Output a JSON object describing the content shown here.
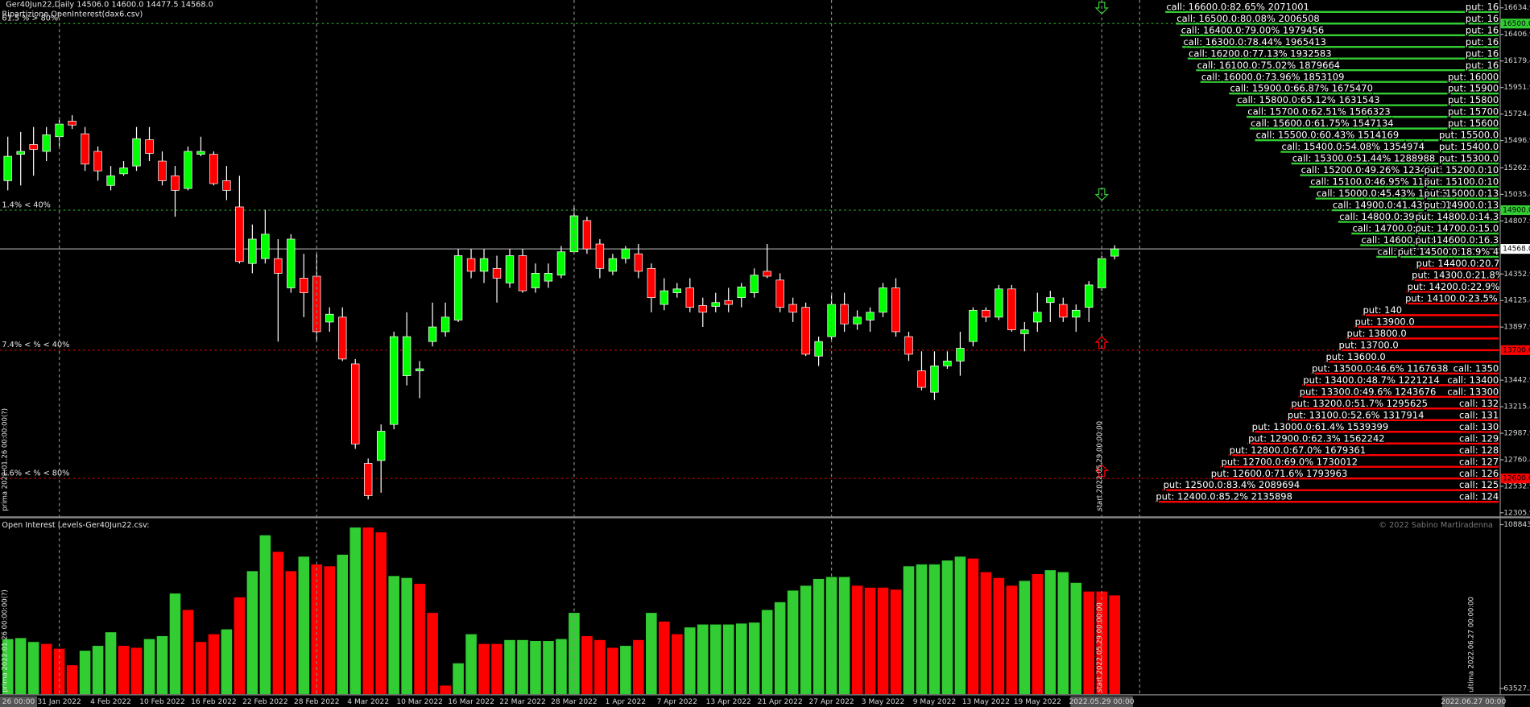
{
  "header": {
    "title": "Ger40Jun22,Daily  14506.0 14600.0 14477.5 14568.0",
    "subtitle": "Ripartizione OpenInterest(dax6.csv)"
  },
  "price_panel": {
    "ylim": [
      12271,
      16702
    ],
    "yticks": [
      16634.9,
      16406.9,
      16179.4,
      15951.9,
      15724.4,
      15496.9,
      15262.9,
      15035.4,
      14807.9,
      14352.9,
      14125.4,
      13897.9,
      13442.9,
      13215.4,
      12987.9,
      12760.4,
      12532.9,
      12305.9
    ],
    "categories": [
      null,
      null,
      null,
      null,
      "31 Jan 2022",
      null,
      null,
      null,
      "4 Feb 2022",
      null,
      null,
      null,
      "10 Feb 2022",
      null,
      null,
      null,
      "16 Feb 2022",
      null,
      null,
      null,
      "22 Feb 2022",
      null,
      null,
      null,
      "28 Feb 2022",
      null,
      null,
      null,
      "4 Mar 2022",
      null,
      null,
      null,
      "10 Mar 2022",
      null,
      null,
      null,
      "16 Mar 2022",
      null,
      null,
      null,
      "22 Mar 2022",
      null,
      null,
      null,
      "28 Mar 2022",
      null,
      null,
      null,
      "1 Apr 2022",
      null,
      null,
      null,
      "7 Apr 2022",
      null,
      null,
      null,
      "13 Apr 2022",
      null,
      null,
      null,
      "21 Apr 2022",
      null,
      null,
      null,
      "27 Apr 2022",
      null,
      null,
      null,
      "3 May 2022",
      null,
      null,
      null,
      "9 May 2022",
      null,
      null,
      null,
      "13 May 2022",
      null,
      null,
      null,
      "19 May 2022",
      null,
      null,
      null,
      null,
      null,
      null
    ],
    "open": [
      15153,
      15379,
      15463,
      15404,
      15530,
      15663,
      15555,
      15404,
      15112,
      15212,
      15279,
      15504,
      15321,
      15195,
      15086,
      15379,
      15379,
      15153,
      14928,
      14443,
      14485,
      14485,
      14234,
      14317,
      14334,
      13941,
      13983,
      13582,
      12729,
      12754,
      13063,
      13481,
      13523,
      13774,
      13858,
      13958,
      14485,
      14376,
      14401,
      14276,
      14510,
      14234,
      14292,
      14343,
      14543,
      14811,
      14610,
      14376,
      14485,
      14526,
      14401,
      14092,
      14192,
      14234,
      14083,
      14075,
      14125,
      14150,
      14192,
      14376,
      14301,
      14092,
      14067,
      13649,
      13816,
      14092,
      13925,
      13958,
      14025,
      14234,
      13816,
      13523,
      13339,
      13565,
      13607,
      13774,
      14042,
      13983,
      14225,
      13841,
      13941,
      14108,
      14092,
      13983,
      14067,
      14234,
      14506.0
    ],
    "high": [
      15530,
      15571,
      15613,
      15613,
      15697,
      15714,
      15613,
      15446,
      15279,
      15321,
      15613,
      15613,
      15404,
      15279,
      15446,
      15530,
      15404,
      15279,
      15195,
      14777,
      14903,
      14652,
      14694,
      14526,
      14526,
      14067,
      14067,
      13624,
      12771,
      13063,
      13858,
      14025,
      13607,
      14108,
      14108,
      14568,
      14568,
      14568,
      14510,
      14568,
      14568,
      14443,
      14443,
      14593,
      14944,
      14844,
      14652,
      14526,
      14593,
      14610,
      14443,
      14317,
      14276,
      14317,
      14150,
      14192,
      14234,
      14276,
      14401,
      14610,
      14359,
      14150,
      14108,
      13816,
      14192,
      14192,
      14042,
      14067,
      14276,
      14317,
      13858,
      13690,
      13690,
      13690,
      13858,
      14067,
      14067,
      14259,
      14259,
      13941,
      14192,
      14209,
      14150,
      14092,
      14292,
      14510,
      14600.0
    ],
    "low": [
      15070,
      15112,
      15195,
      15321,
      15446,
      15596,
      15237,
      15153,
      15070,
      15195,
      15237,
      15321,
      15112,
      14844,
      15070,
      15362,
      15112,
      14986,
      14443,
      14359,
      14443,
      13774,
      14192,
      13983,
      13774,
      13858,
      13607,
      12854,
      12420,
      12478,
      13022,
      13398,
      13289,
      13732,
      13816,
      13941,
      14317,
      14276,
      14108,
      14234,
      14192,
      14192,
      14234,
      14317,
      14526,
      14526,
      14317,
      14343,
      14443,
      14317,
      14025,
      14042,
      14150,
      14025,
      13899,
      14025,
      14025,
      14067,
      14150,
      14317,
      14025,
      13941,
      13649,
      13565,
      13791,
      13858,
      13874,
      13858,
      13983,
      13816,
      13607,
      13356,
      13272,
      13540,
      13481,
      13732,
      13941,
      13958,
      13858,
      13690,
      13858,
      13941,
      13941,
      13858,
      13941,
      14209,
      14477.5
    ],
    "close": [
      15362,
      15404,
      15421,
      15546,
      15638,
      15630,
      15295,
      15237,
      15195,
      15262,
      15513,
      15387,
      15153,
      15070,
      15404,
      15404,
      15128,
      15070,
      14460,
      14652,
      14694,
      14359,
      14652,
      14192,
      13858,
      14008,
      13624,
      12896,
      12453,
      13005,
      13816,
      13816,
      13540,
      13899,
      13983,
      14510,
      14376,
      14485,
      14317,
      14510,
      14209,
      14359,
      14359,
      14543,
      14852,
      14568,
      14401,
      14485,
      14568,
      14376,
      14150,
      14209,
      14225,
      14067,
      14025,
      14108,
      14092,
      14242,
      14343,
      14334,
      14067,
      14025,
      13665,
      13774,
      14092,
      13925,
      13983,
      14025,
      14234,
      13858,
      13665,
      13381,
      13565,
      13607,
      13716,
      14042,
      13983,
      14225,
      13874,
      13874,
      14025,
      14150,
      13983,
      14042,
      14259,
      14485,
      14568.0
    ],
    "up_color": "#00ff00",
    "down_color": "#ff0000",
    "current": {
      "value": 14568,
      "label": "14568.0"
    },
    "levels": [
      {
        "value": 16500,
        "label": "16500.0",
        "color": "#32cd32",
        "note": "61.5 % > 80%"
      },
      {
        "value": 14900,
        "label": "14900.0",
        "color": "#32cd32",
        "note": "1.4% < 40%"
      },
      {
        "value": 13700,
        "label": "13700.0",
        "color": "#ff0000",
        "note": "7.4% < % < 40%"
      },
      {
        "value": 12600,
        "label": "12600.0",
        "color": "#ff0000",
        "note": "1.6% < % < 80%"
      }
    ],
    "first_marker": "prima 2022.01.26 00:00:00(?)",
    "start_marker": "start 2022.05.29 00:00:00"
  },
  "ladder": {
    "rows": [
      {
        "strike": 16600,
        "oi": 2071001,
        "color": "#32cd32",
        "text": "call: 16600.0:82.65% 2071001",
        "right": "put: 16"
      },
      {
        "strike": 16500,
        "oi": 2006508,
        "color": "#32cd32",
        "text": "call: 16500.0:80.08% 2006508",
        "right": "put: 16"
      },
      {
        "strike": 16400,
        "oi": 1979456,
        "color": "#32cd32",
        "text": "call: 16400.0:79.00% 1979456",
        "right": "put: 16"
      },
      {
        "strike": 16300,
        "oi": 1965413,
        "color": "#32cd32",
        "text": "call: 16300.0:78.44% 1965413",
        "right": "put: 16"
      },
      {
        "strike": 16200,
        "oi": 1932583,
        "color": "#32cd32",
        "text": "call: 16200.0:77.13% 1932583",
        "right": "put: 16"
      },
      {
        "strike": 16100,
        "oi": 1879664,
        "color": "#32cd32",
        "text": "call: 16100.0:75.02% 1879664",
        "right": "put: 16"
      },
      {
        "strike": 16000,
        "oi": 1853109,
        "color": "#32cd32",
        "text": "call: 16000.0:73.96% 1853109",
        "right": "put: 16000"
      },
      {
        "strike": 15900,
        "oi": 1675470,
        "color": "#32cd32",
        "text": "call: 15900.0:66.87% 1675470",
        "right": "put: 15900"
      },
      {
        "strike": 15800,
        "oi": 1631543,
        "color": "#32cd32",
        "text": "call: 15800.0:65.12% 1631543",
        "right": "put: 15800"
      },
      {
        "strike": 15700,
        "oi": 1566323,
        "color": "#32cd32",
        "text": "call: 15700.0:62.51% 1566323",
        "right": "put: 15700"
      },
      {
        "strike": 15600,
        "oi": 1547134,
        "color": "#32cd32",
        "text": "call: 15600.0:61.75% 1547134",
        "right": "put: 15600"
      },
      {
        "strike": 15500,
        "oi": 1514169,
        "color": "#32cd32",
        "text": "call: 15500.0:60.43% 1514169",
        "right": "put: 15500.0"
      },
      {
        "strike": 15400,
        "oi": 1354974,
        "color": "#32cd32",
        "text": "call: 15400.0:54.08% 1354974",
        "right": "put: 15400.0"
      },
      {
        "strike": 15300,
        "oi": 1288988,
        "color": "#32cd32",
        "text": "call: 15300.0:51.44% 1288988",
        "right": "put: 15300.0"
      },
      {
        "strike": 15200,
        "oi": 1234271,
        "color": "#32cd32",
        "text": "call: 15200.0:49.26% 1234271",
        "right": "put: 15200.0:10"
      },
      {
        "strike": 15100,
        "oi": 1176345,
        "color": "#32cd32",
        "text": "call: 15100.0:46.95% 11763",
        "right": "put: 15100.0:10"
      },
      {
        "strike": 15000,
        "oi": 1138300,
        "color": "#32cd32",
        "text": "call: 15000.0:45.43% 11383",
        "right": "put: 15000.0:13"
      },
      {
        "strike": 14900,
        "oi": 1038000,
        "color": "#32cd32",
        "text": "call: 14900.0:41.43% 103",
        "right": "put: 14900.0:13"
      },
      {
        "strike": 14800,
        "oi": 996500,
        "color": "#32cd32",
        "text": "call: 14800.0:39.77",
        "right": "put: 14800.0:14.3"
      },
      {
        "strike": 14700,
        "oi": 915000,
        "color": "#32cd32",
        "text": "call: 14700.0:36.",
        "right": "put: 14700.0:15.0"
      },
      {
        "strike": 14600,
        "oi": 860000,
        "color": "#32cd32",
        "text": "call: 14600.0:34.",
        "right": "put: 14600.0:16.3"
      },
      {
        "strike": 14500,
        "oi": 760000,
        "color": "#32cd32",
        "text": "call: 145",
        "right": "put: 14500.0:18.9% 4"
      },
      {
        "strike": 14400,
        "oi": 518928,
        "color": "#ff0000",
        "text": "put: 14400.0:20.7% 519"
      },
      {
        "strike": 14300,
        "oi": 546500,
        "color": "#ff0000",
        "text": "put: 14300.0:21.8% 546"
      },
      {
        "strike": 14200,
        "oi": 574080,
        "color": "#ff0000",
        "text": "put: 14200.0:22.9% 574"
      },
      {
        "strike": 14100,
        "oi": 587000,
        "color": "#ff0000",
        "text": "put: 14100.0:23.5% 587"
      },
      {
        "strike": 14000,
        "oi": 850000,
        "color": "#ff0000",
        "text": "put: 140"
      },
      {
        "strike": 13900,
        "oi": 900000,
        "color": "#ff0000",
        "text": "put: 13900.0"
      },
      {
        "strike": 13800,
        "oi": 950000,
        "color": "#ff0000",
        "text": "put: 13800.0"
      },
      {
        "strike": 13700,
        "oi": 1000000,
        "color": "#ff0000",
        "text": "put: 13700.0"
      },
      {
        "strike": 13600,
        "oi": 1080000,
        "color": "#ff0000",
        "text": "put: 13600.0"
      },
      {
        "strike": 13500,
        "oi": 1167638,
        "color": "#ff0000",
        "text": "put: 13500.0:46.6% 1167638",
        "right": "call: 1350"
      },
      {
        "strike": 13400,
        "oi": 1221214,
        "color": "#ff0000",
        "text": "put: 13400.0:48.7% 1221214",
        "right": "call: 13400"
      },
      {
        "strike": 13300,
        "oi": 1243676,
        "color": "#ff0000",
        "text": "put: 13300.0:49.6% 1243676",
        "right": "call: 13300"
      },
      {
        "strike": 13200,
        "oi": 1295625,
        "color": "#ff0000",
        "text": "put: 13200.0:51.7% 1295625",
        "right": "call: 132"
      },
      {
        "strike": 13100,
        "oi": 1317914,
        "color": "#ff0000",
        "text": "put: 13100.0:52.6% 1317914",
        "right": "call: 131"
      },
      {
        "strike": 13000,
        "oi": 1539399,
        "color": "#ff0000",
        "text": "put: 13000.0:61.4% 1539399",
        "right": "call: 130"
      },
      {
        "strike": 12900,
        "oi": 1562242,
        "color": "#ff0000",
        "text": "put: 12900.0:62.3% 1562242",
        "right": "call: 129"
      },
      {
        "strike": 12800,
        "oi": 1679361,
        "color": "#ff0000",
        "text": "put: 12800.0:67.0% 1679361",
        "right": "call: 128"
      },
      {
        "strike": 12700,
        "oi": 1730012,
        "color": "#ff0000",
        "text": "put: 12700.0:69.0% 1730012",
        "right": "call: 127"
      },
      {
        "strike": 12600,
        "oi": 1793963,
        "color": "#ff0000",
        "text": "put: 12600.0:71.6% 1793963",
        "right": "call: 126"
      },
      {
        "strike": 12500,
        "oi": 2089694,
        "color": "#ff0000",
        "text": "put: 12500.0:83.4% 2089694",
        "right": "call: 125"
      },
      {
        "strike": 12400,
        "oi": 2135898,
        "color": "#ff0000",
        "text": "put: 12400.0:85.2% 2135898",
        "right": "call: 124"
      }
    ]
  },
  "oi_panel": {
    "title": "Open Interest Levels-Ger40Jun22.csv:",
    "copyright": "© 2022 Sabino Martiradenna",
    "ylim": [
      61918,
      110453
    ],
    "yticks": [
      108843.9,
      63527.2
    ],
    "values": [
      77202,
      77471,
      76398,
      75862,
      74521,
      69962,
      73985,
      75325,
      79079,
      75325,
      74789,
      77202,
      78007,
      89805,
      85247,
      76398,
      78543,
      79884,
      88733,
      95973,
      105894,
      101336,
      95973,
      99995,
      97850,
      97314,
      100531,
      108040,
      108040,
      106699,
      94632,
      94096,
      92487,
      84442,
      64331,
      70499,
      78543,
      75862,
      75862,
      76934,
      76934,
      76666,
      76666,
      77202,
      84442,
      78007,
      76934,
      74789,
      75325,
      76934,
      84442,
      82029,
      78543,
      80420,
      81225,
      81225,
      81225,
      81493,
      81761,
      85247,
      87392,
      90610,
      91951,
      93828,
      94364,
      94364,
      91951,
      91414,
      91414,
      90878,
      97314,
      97850,
      97850,
      98923,
      99995,
      99459,
      95705,
      94096,
      91951,
      93291,
      95168,
      96241,
      95705,
      92755,
      90342,
      90342,
      89269
    ],
    "colors": [
      "#32cd32",
      "#32cd32",
      "#32cd32",
      "#ff0000",
      "#ff0000",
      "#ff0000",
      "#32cd32",
      "#32cd32",
      "#32cd32",
      "#ff0000",
      "#ff0000",
      "#32cd32",
      "#32cd32",
      "#32cd32",
      "#ff0000",
      "#ff0000",
      "#ff0000",
      "#32cd32",
      "#ff0000",
      "#32cd32",
      "#32cd32",
      "#ff0000",
      "#ff0000",
      "#32cd32",
      "#ff0000",
      "#ff0000",
      "#32cd32",
      "#32cd32",
      "#ff0000",
      "#ff0000",
      "#32cd32",
      "#32cd32",
      "#ff0000",
      "#ff0000",
      "#ff0000",
      "#32cd32",
      "#32cd32",
      "#ff0000",
      "#ff0000",
      "#32cd32",
      "#32cd32",
      "#32cd32",
      "#32cd32",
      "#32cd32",
      "#32cd32",
      "#ff0000",
      "#ff0000",
      "#ff0000",
      "#32cd32",
      "#ff0000",
      "#32cd32",
      "#ff0000",
      "#ff0000",
      "#32cd32",
      "#32cd32",
      "#32cd32",
      "#32cd32",
      "#32cd32",
      "#32cd32",
      "#32cd32",
      "#32cd32",
      "#32cd32",
      "#32cd32",
      "#32cd32",
      "#32cd32",
      "#32cd32",
      "#ff0000",
      "#ff0000",
      "#ff0000",
      "#ff0000",
      "#32cd32",
      "#32cd32",
      "#32cd32",
      "#32cd32",
      "#32cd32",
      "#ff0000",
      "#ff0000",
      "#ff0000",
      "#ff0000",
      "#32cd32",
      "#ff0000",
      "#32cd32",
      "#32cd32",
      "#32cd32",
      "#ff0000",
      "#ff0000",
      "#ff0000"
    ],
    "first_marker": "prima 2022.01.26 00:00:00(?)",
    "start_marker": "start 2022.05.29 00:00:00",
    "last_marker": "ultima 2022.06.27 00:00:00"
  },
  "time_axis": {
    "first": "26 00:00",
    "start": "2022.05.29 00:00",
    "last": "2022.06.27 00:00"
  }
}
